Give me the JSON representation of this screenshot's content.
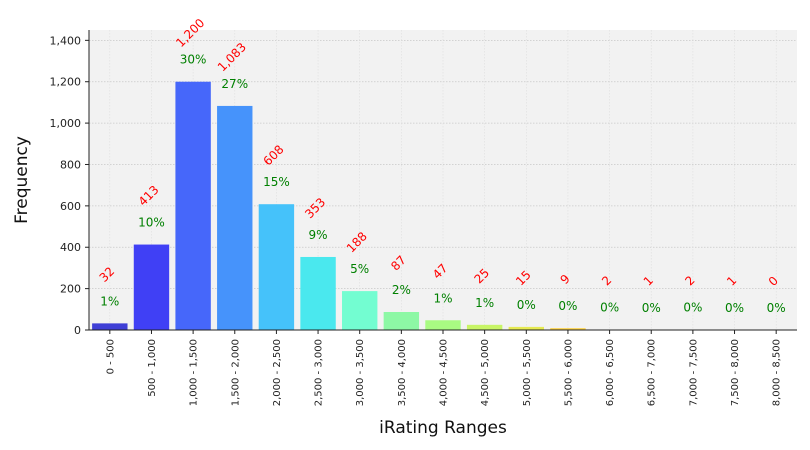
{
  "chart_data": {
    "type": "bar",
    "xlabel": "iRating Ranges",
    "ylabel": "Frequency",
    "ylim": [
      0,
      1450
    ],
    "yticks": [
      0,
      200,
      400,
      600,
      800,
      1000,
      1200,
      1400
    ],
    "ytick_labels": [
      "0",
      "200",
      "400",
      "600",
      "800",
      "1,000",
      "1,200",
      "1,400"
    ],
    "grid": true,
    "categories": [
      "0 - 500",
      "500 - 1,000",
      "1,000 - 1,500",
      "1,500 - 2,000",
      "2,000 - 2,500",
      "2,500 - 3,000",
      "3,000 - 3,500",
      "3,500 - 4,000",
      "4,000 - 4,500",
      "4,500 - 5,000",
      "5,000 - 5,500",
      "5,500 - 6,000",
      "6,000 - 6,500",
      "6,500 - 7,000",
      "7,000 - 7,500",
      "7,500 - 8,000",
      "8,000 - 8,500"
    ],
    "values": [
      32,
      413,
      1200,
      1083,
      608,
      353,
      188,
      87,
      47,
      25,
      15,
      9,
      2,
      1,
      2,
      1,
      0
    ],
    "count_labels": [
      "32",
      "413",
      "1,200",
      "1,083",
      "608",
      "353",
      "188",
      "87",
      "47",
      "25",
      "15",
      "9",
      "2",
      "1",
      "2",
      "1",
      "0"
    ],
    "percent_labels": [
      "1%",
      "10%",
      "30%",
      "27%",
      "15%",
      "9%",
      "5%",
      "2%",
      "1%",
      "1%",
      "0%",
      "0%",
      "0%",
      "0%",
      "0%",
      "0%",
      "0%"
    ],
    "colors": [
      "#3f3fd6",
      "#4040f5",
      "#4667fa",
      "#4693fb",
      "#45c2fa",
      "#4ae8ee",
      "#73fdd1",
      "#8df8a5",
      "#a9fb82",
      "#c8f566",
      "#e6ea52",
      "#fdd44a",
      "#fdb33f",
      "#f88d35",
      "#f66a2c",
      "#e84823",
      "#c8251c"
    ],
    "count_color": "#ff0000",
    "percent_color": "#008000",
    "plot_background": "#f2f2f2"
  }
}
